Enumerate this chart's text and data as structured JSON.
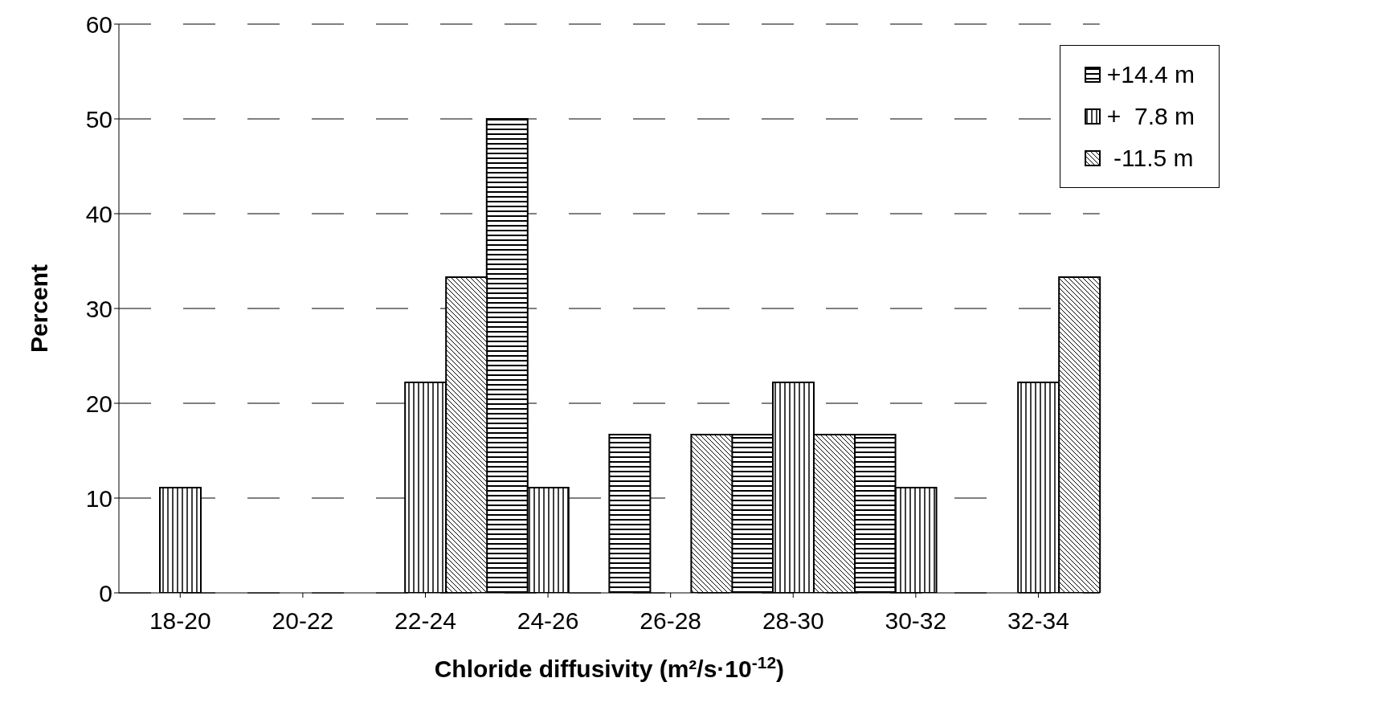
{
  "chart_data": {
    "type": "bar",
    "xlabel": "Chloride diffusivity (m²/s·10$^{-12}$)",
    "ylabel": "Percent",
    "categories": [
      "18-20",
      "20-22",
      "22-24",
      "24-26",
      "26-28",
      "28-30",
      "30-32",
      "32-34"
    ],
    "series": [
      {
        "name": "+14.4 m",
        "color": "#000000",
        "values": [
          0,
          0,
          0,
          50,
          16.7,
          16.7,
          16.7,
          0
        ]
      },
      {
        "name": "+  7.8 m",
        "color": "#000000",
        "values": [
          11.1,
          0,
          22.2,
          11.1,
          0,
          22.2,
          11.1,
          22.2
        ]
      },
      {
        "name": " -11.5 m",
        "color": "#000000",
        "values": [
          0,
          0,
          33.3,
          0,
          16.7,
          16.7,
          0,
          33.3
        ]
      }
    ],
    "ylim": [
      0,
      60
    ],
    "yticks": [
      0,
      10,
      20,
      30,
      40,
      50,
      60
    ],
    "grid": "y",
    "legend": "top right"
  }
}
